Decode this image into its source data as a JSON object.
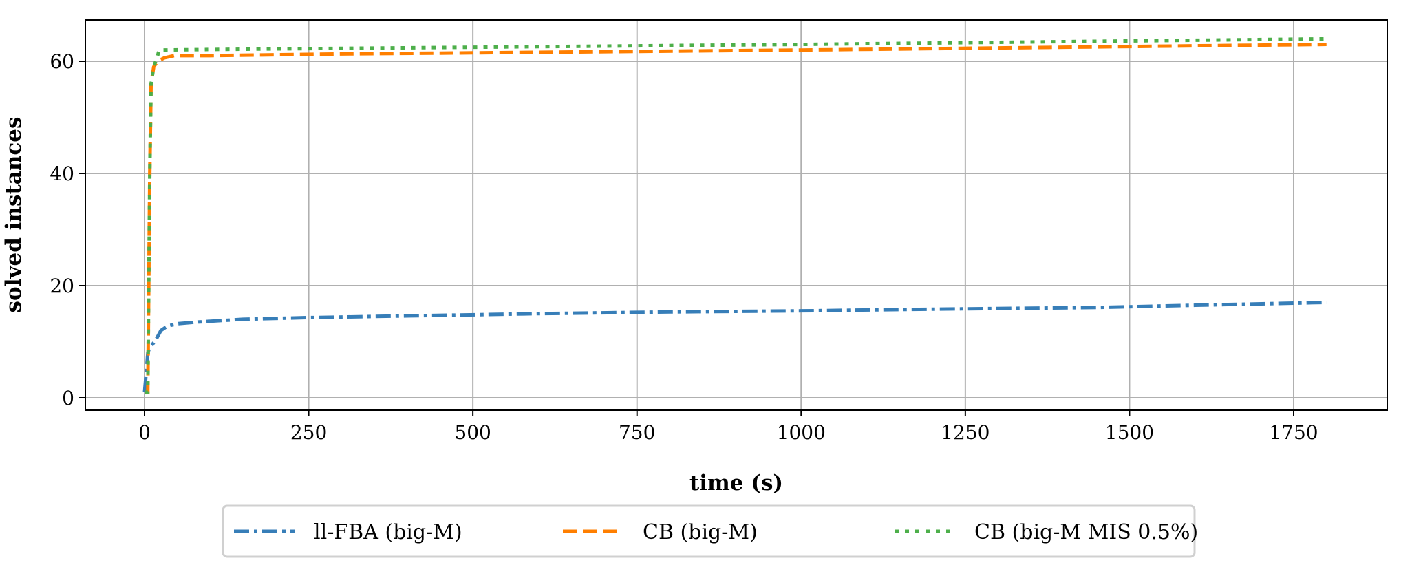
{
  "chart_data": {
    "type": "line",
    "title": "",
    "xlabel": "time (s)",
    "ylabel": "solved instances",
    "xlim": [
      -90,
      1880
    ],
    "ylim": [
      -2.5,
      67
    ],
    "xticks": [
      0,
      250,
      500,
      750,
      1000,
      1250,
      1500,
      1750
    ],
    "yticks": [
      0,
      20,
      40,
      60
    ],
    "grid": true,
    "legend_placement": "below",
    "series": [
      {
        "name": "ll-FBA (big-M)",
        "color": "#377eb8",
        "style": "dashdot",
        "x": [
          0,
          3,
          5,
          8,
          12,
          18,
          25,
          35,
          50,
          80,
          150,
          250,
          400,
          600,
          800,
          1000,
          1200,
          1450,
          1600,
          1800
        ],
        "y": [
          1,
          5,
          8,
          9,
          9.5,
          10.5,
          12,
          12.8,
          13.2,
          13.5,
          14,
          14.3,
          14.6,
          15,
          15.3,
          15.5,
          15.8,
          16.1,
          16.5,
          17
        ]
      },
      {
        "name": "CB (big-M)",
        "color": "#ff7f00",
        "style": "dashed",
        "x": [
          0,
          5,
          8,
          10,
          14,
          20,
          30,
          45,
          100,
          300,
          600,
          1000,
          1400,
          1800
        ],
        "y": [
          1,
          1,
          40,
          56,
          59,
          60,
          60.6,
          61,
          61,
          61.3,
          61.6,
          62,
          62.5,
          63
        ]
      },
      {
        "name": "CB (big-M MIS 0.5%)",
        "color": "#4daf4a",
        "style": "dotted",
        "x": [
          0,
          5,
          8,
          10,
          14,
          20,
          22,
          100,
          300,
          600,
          1000,
          1400,
          1800
        ],
        "y": [
          1,
          1,
          40,
          56,
          59,
          61,
          62,
          62.1,
          62.3,
          62.6,
          63,
          63.5,
          64
        ]
      }
    ]
  }
}
